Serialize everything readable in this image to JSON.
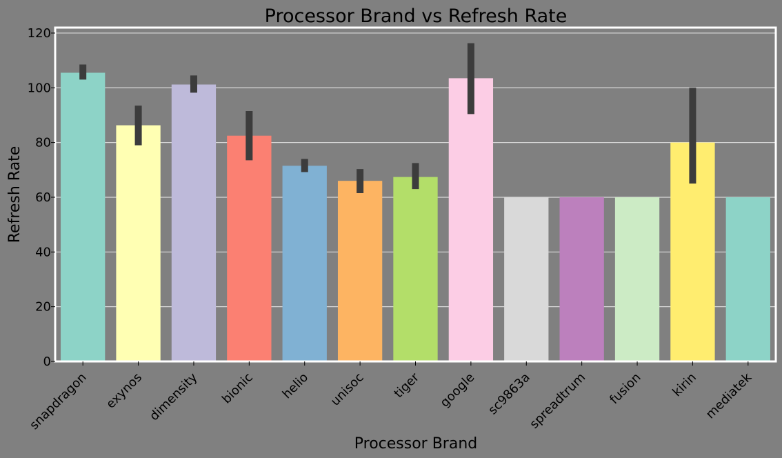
{
  "chart_data": {
    "type": "bar",
    "title": "Processor Brand vs Refresh Rate",
    "xlabel": "Processor Brand",
    "ylabel": "Refresh Rate",
    "ylim": [
      0,
      122
    ],
    "yticks": [
      0,
      20,
      40,
      60,
      80,
      100,
      120
    ],
    "grid": true,
    "categories": [
      "snapdragon",
      "exynos",
      "dimensity",
      "bionic",
      "helio",
      "unisoc",
      "tiger",
      "google",
      "sc9863a",
      "spreadtrum",
      "fusion",
      "kirin",
      "mediatek"
    ],
    "values": [
      105.5,
      86.3,
      101.2,
      82.5,
      71.5,
      66.0,
      67.4,
      103.5,
      60,
      60,
      60,
      80,
      60
    ],
    "error_low": [
      103,
      79,
      98.2,
      73.5,
      69.2,
      61.5,
      63,
      90.4,
      null,
      null,
      null,
      65,
      null
    ],
    "error_high": [
      108.5,
      93.5,
      104.5,
      91.5,
      74,
      70.3,
      72.5,
      116.3,
      null,
      null,
      null,
      100,
      null
    ],
    "colors": [
      "#8dd3c7",
      "#ffffb3",
      "#bebada",
      "#fb8072",
      "#80b1d3",
      "#fdb462",
      "#b3de69",
      "#fccde5",
      "#d9d9d9",
      "#bc80bd",
      "#ccebc5",
      "#ffed6f",
      "#8dd3c7"
    ]
  }
}
